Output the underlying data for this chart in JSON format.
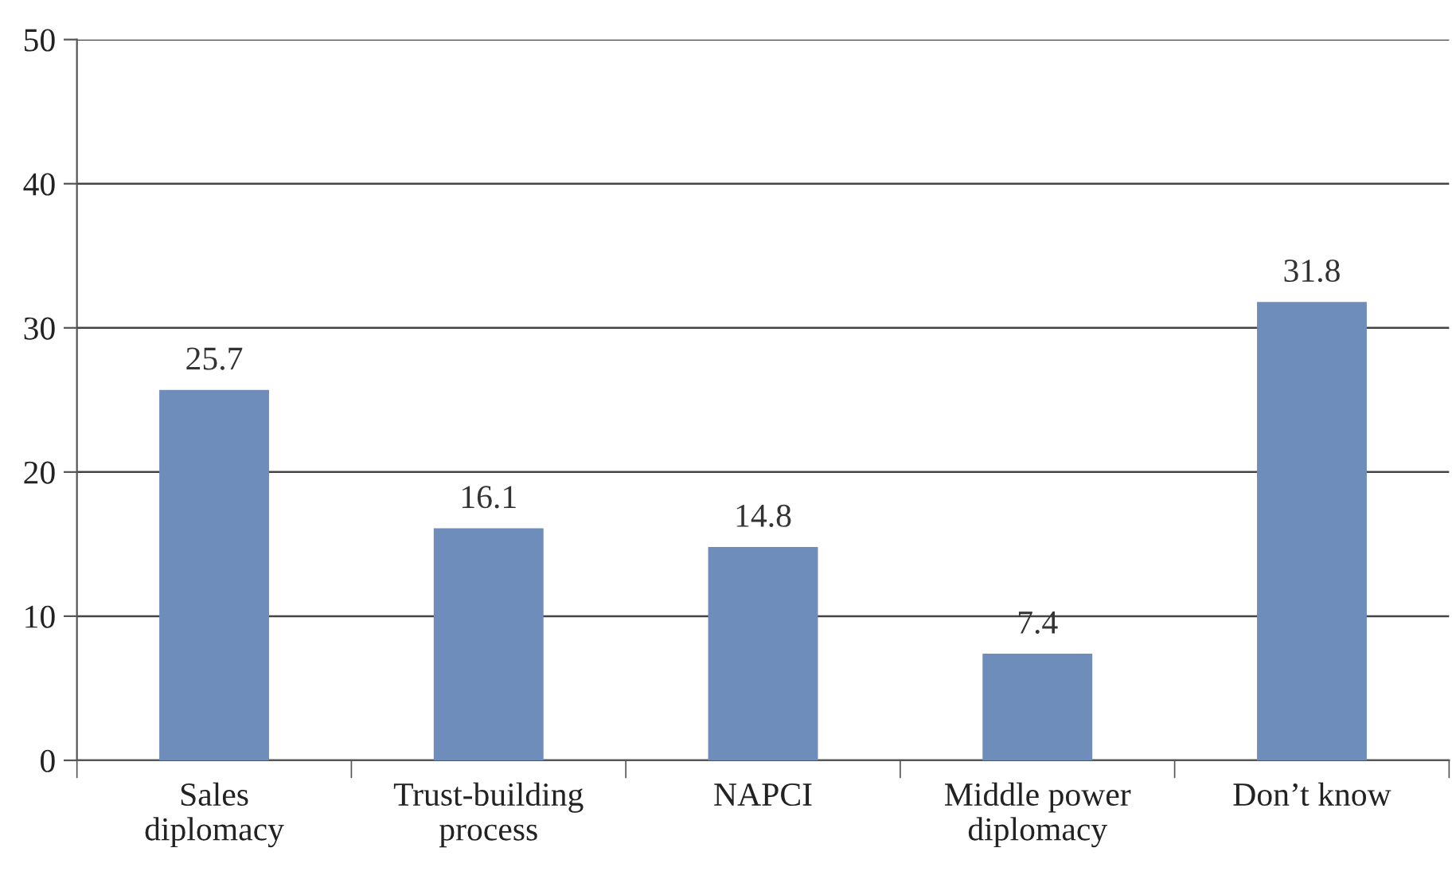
{
  "chart_data": {
    "type": "bar",
    "categories": [
      "Sales\ndiplomacy",
      "Trust-building\nprocess",
      "NAPCI",
      "Middle power\ndiplomacy",
      "Don’t know"
    ],
    "values": [
      25.7,
      16.1,
      14.8,
      7.4,
      31.8
    ],
    "color": "#6f8dba",
    "ylim": [
      0,
      50
    ],
    "yticks": [
      0,
      10,
      20,
      30,
      40,
      50
    ],
    "grid": "y",
    "data_labels": true,
    "legend": false
  }
}
